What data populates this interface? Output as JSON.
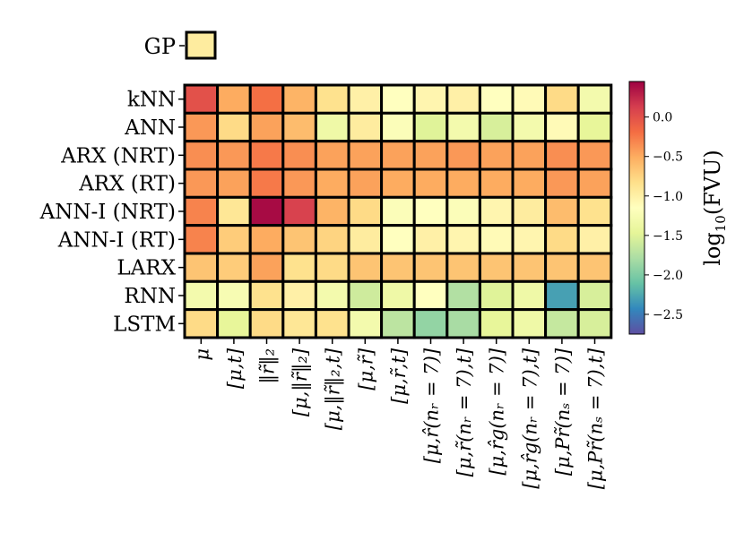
{
  "chart_data": {
    "type": "heatmap",
    "title": "",
    "rows": [
      "kNN",
      "ANN",
      "ARX (NRT)",
      "ARX (RT)",
      "ANN-I (NRT)",
      "ANN-I (RT)",
      "LARX",
      "RNN",
      "LSTM"
    ],
    "columns": [
      "μ",
      "[μ,t]",
      "‖r̃‖₂",
      "[μ,‖r̃‖₂]",
      "[μ,‖r̃‖₂,t]",
      "[μ,r̃]",
      "[μ,r̃,t]",
      "[μ,r̂(nᵣ = 7)]",
      "[μ,r̃(nᵣ = 7),t]",
      "[μ,r̂g(nᵣ = 7)]",
      "[μ,r̂g(nᵣ = 7),t]",
      "[μ,Pr̃(nₛ = 7)]",
      "[μ,Pr̃(nₛ = 7),t]"
    ],
    "values": [
      [
        0.0,
        -0.5,
        -0.2,
        -0.55,
        -0.85,
        -1.0,
        -1.15,
        -1.05,
        -1.0,
        -1.15,
        -1.1,
        -0.8,
        -1.3
      ],
      [
        -0.4,
        -0.8,
        -0.45,
        -0.6,
        -1.35,
        -0.95,
        -1.2,
        -1.5,
        -1.3,
        -1.55,
        -1.3,
        -1.1,
        -1.45
      ],
      [
        -0.35,
        -0.4,
        -0.25,
        -0.35,
        -0.45,
        -0.45,
        -0.45,
        -0.45,
        -0.4,
        -0.45,
        -0.45,
        -0.35,
        -0.4
      ],
      [
        -0.4,
        -0.45,
        -0.25,
        -0.4,
        -0.5,
        -0.45,
        -0.5,
        -0.5,
        -0.5,
        -0.5,
        -0.5,
        -0.4,
        -0.45
      ],
      [
        -0.3,
        -0.9,
        0.4,
        0.1,
        -0.55,
        -0.8,
        -1.2,
        -1.15,
        -1.2,
        -1.05,
        -0.95,
        -0.6,
        -0.85
      ],
      [
        -0.3,
        -0.7,
        -0.5,
        -0.65,
        -0.75,
        -0.95,
        -1.15,
        -1.0,
        -1.05,
        -1.1,
        -1.05,
        -0.8,
        -1.0
      ],
      [
        -0.65,
        -0.7,
        -0.45,
        -0.85,
        -0.8,
        -0.65,
        -0.65,
        -0.65,
        -0.65,
        -0.65,
        -0.65,
        -0.65,
        -0.65
      ],
      [
        -1.3,
        -1.25,
        -0.85,
        -1.0,
        -1.3,
        -1.6,
        -1.35,
        -1.15,
        -1.75,
        -1.5,
        -1.35,
        -2.3,
        -1.55
      ],
      [
        -0.8,
        -1.45,
        -0.8,
        -0.9,
        -0.85,
        -1.3,
        -1.7,
        -1.9,
        -1.8,
        -1.45,
        -1.35,
        -1.65,
        -1.55
      ]
    ],
    "gp": {
      "label": "GP",
      "value": -0.95
    },
    "colorbar": {
      "label": "log10(FVU)",
      "min": -2.75,
      "max": 0.45,
      "ticks": [
        "0.0",
        "−0.5",
        "−1.0",
        "−1.5",
        "−2.0",
        "−2.5"
      ],
      "tick_values": [
        0.0,
        -0.5,
        -1.0,
        -1.5,
        -2.0,
        -2.5
      ],
      "colormap": "Spectral"
    }
  }
}
